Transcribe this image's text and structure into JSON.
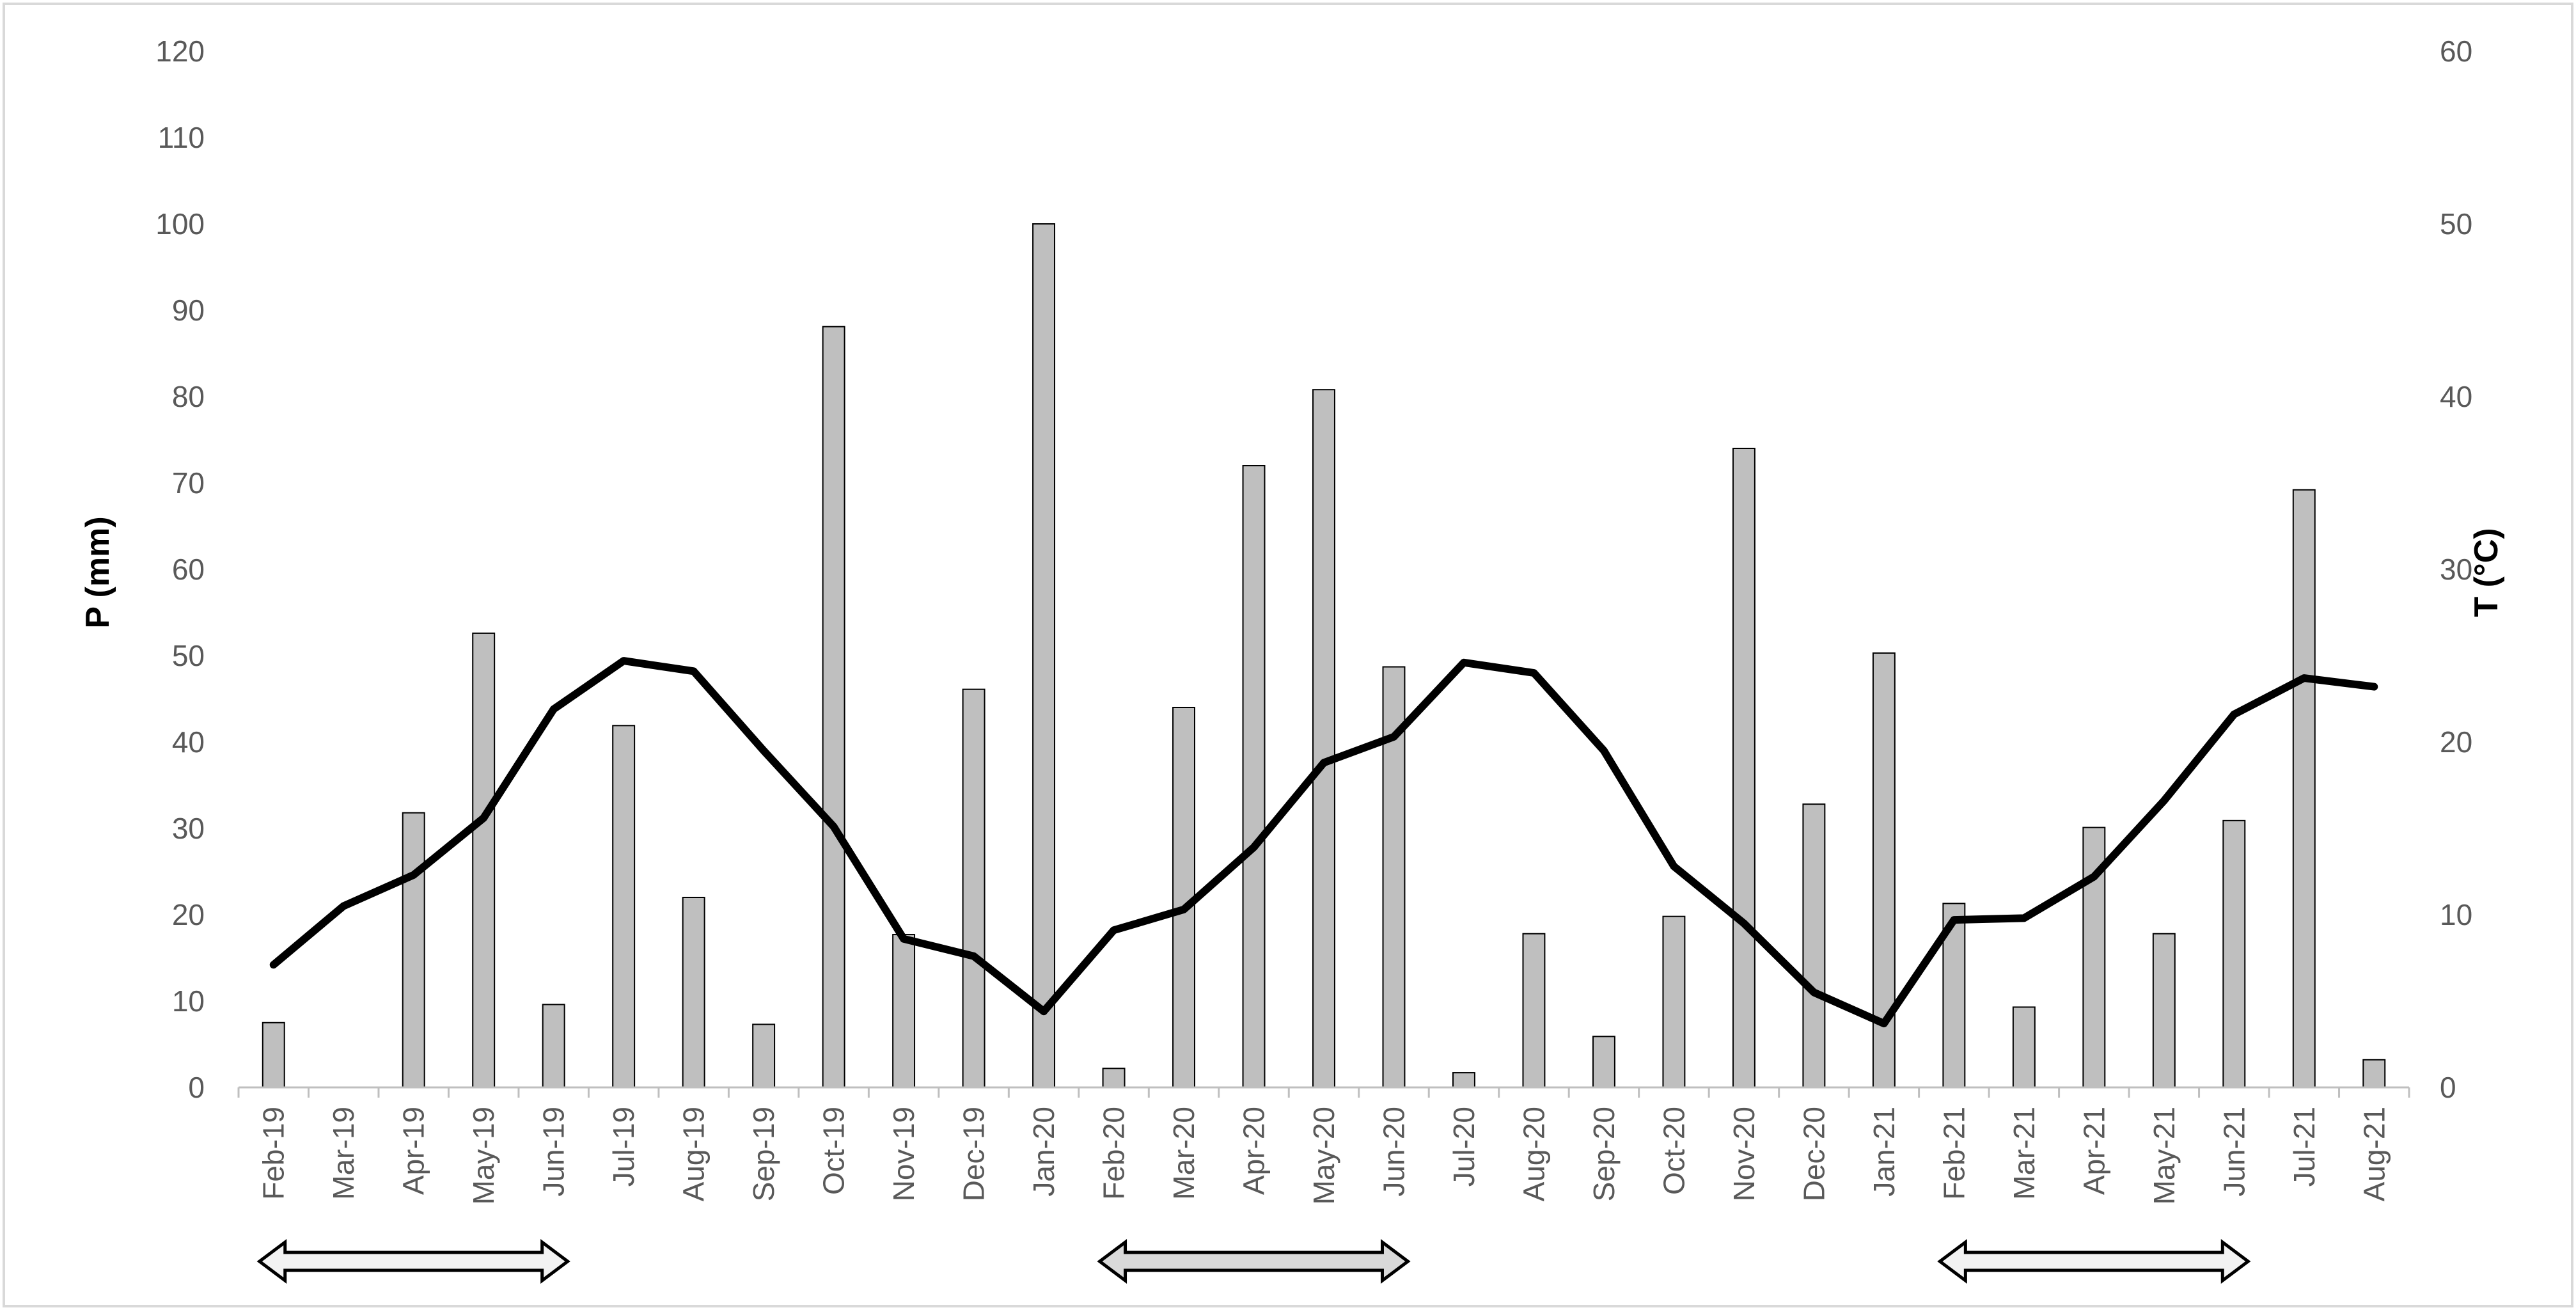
{
  "chart_data": {
    "type": "bar",
    "title": "",
    "xlabel": "",
    "ylabel": "P (mm)",
    "y2label": "T (°C)",
    "ylim": [
      0,
      120
    ],
    "y2lim": [
      0,
      60
    ],
    "yticks": [
      0,
      10,
      20,
      30,
      40,
      50,
      60,
      70,
      80,
      90,
      100,
      110,
      120
    ],
    "y2ticks": [
      0,
      10,
      20,
      30,
      40,
      50,
      60
    ],
    "grid": false,
    "legend": "none",
    "categories": [
      "Feb-19",
      "Mar-19",
      "Apr-19",
      "May-19",
      "Jun-19",
      "Jul-19",
      "Aug-19",
      "Sep-19",
      "Oct-19",
      "Nov-19",
      "Dec-19",
      "Jan-20",
      "Feb-20",
      "Mar-20",
      "Apr-20",
      "May-20",
      "Jun-20",
      "Jul-20",
      "Aug-20",
      "Sep-20",
      "Oct-20",
      "Nov-20",
      "Dec-20",
      "Jan-21",
      "Feb-21",
      "Mar-21",
      "Apr-21",
      "May-21",
      "Jun-21",
      "Jul-21",
      "Aug-21"
    ],
    "series": [
      {
        "type": "bar",
        "axis": "left",
        "color": "#bfbfbf",
        "values": [
          7.5,
          0,
          31.8,
          52.6,
          9.6,
          41.9,
          22,
          7.3,
          88.1,
          17.7,
          46.1,
          100,
          2.2,
          44,
          72,
          80.8,
          48.7,
          1.7,
          17.8,
          5.9,
          19.8,
          74,
          32.8,
          50.3,
          21.3,
          9.3,
          30.1,
          17.8,
          30.9,
          69.2,
          3.2
        ]
      },
      {
        "type": "line",
        "axis": "right",
        "color": "#000000",
        "values": [
          7.1,
          10.5,
          12.3,
          15.6,
          21.9,
          24.7,
          24.1,
          19.5,
          15.1,
          8.6,
          7.6,
          4.4,
          9.1,
          10.3,
          13.9,
          18.8,
          20.3,
          24.6,
          24,
          19.5,
          12.8,
          9.5,
          5.5,
          3.7,
          9.7,
          9.8,
          12.2,
          16.6,
          21.6,
          23.7,
          23.2
        ]
      }
    ],
    "annotations": [
      {
        "type": "double-arrow",
        "from": "Feb-19",
        "to": "Jun-19",
        "fill": "#f2f2f2"
      },
      {
        "type": "double-arrow",
        "from": "Feb-20",
        "to": "Jun-20",
        "fill": "#d9d9d9"
      },
      {
        "type": "double-arrow",
        "from": "Feb-21",
        "to": "Jun-21",
        "fill": "#f2f2f2"
      }
    ]
  }
}
